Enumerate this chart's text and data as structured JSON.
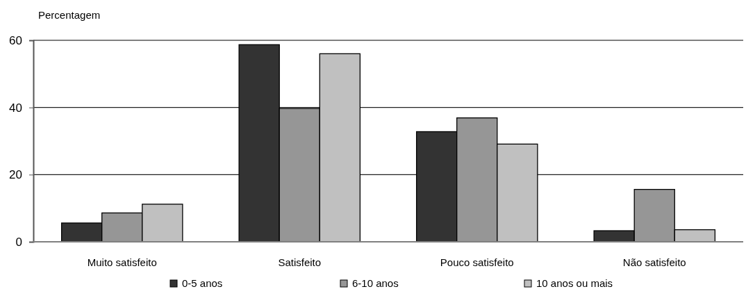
{
  "chart_data": {
    "type": "bar",
    "ylabel": "Percentagem",
    "categories": [
      "Muito satisfeito",
      "Satisfeito",
      "Pouco satisfeito",
      "Não satisfeito"
    ],
    "series": [
      {
        "name": "0-5 anos",
        "color": "#333333",
        "values": [
          5.6,
          58.7,
          32.8,
          3.3
        ]
      },
      {
        "name": "6-10 anos",
        "color": "#969696",
        "values": [
          8.6,
          39.7,
          36.9,
          15.6
        ]
      },
      {
        "name": "10 anos ou mais",
        "color": "#c0c0c0",
        "values": [
          11.2,
          56.0,
          29.1,
          3.6
        ]
      }
    ],
    "ylim": [
      0,
      60
    ],
    "yticks": [
      0,
      20,
      40,
      60
    ],
    "grid": "y",
    "legend": "bottom"
  }
}
